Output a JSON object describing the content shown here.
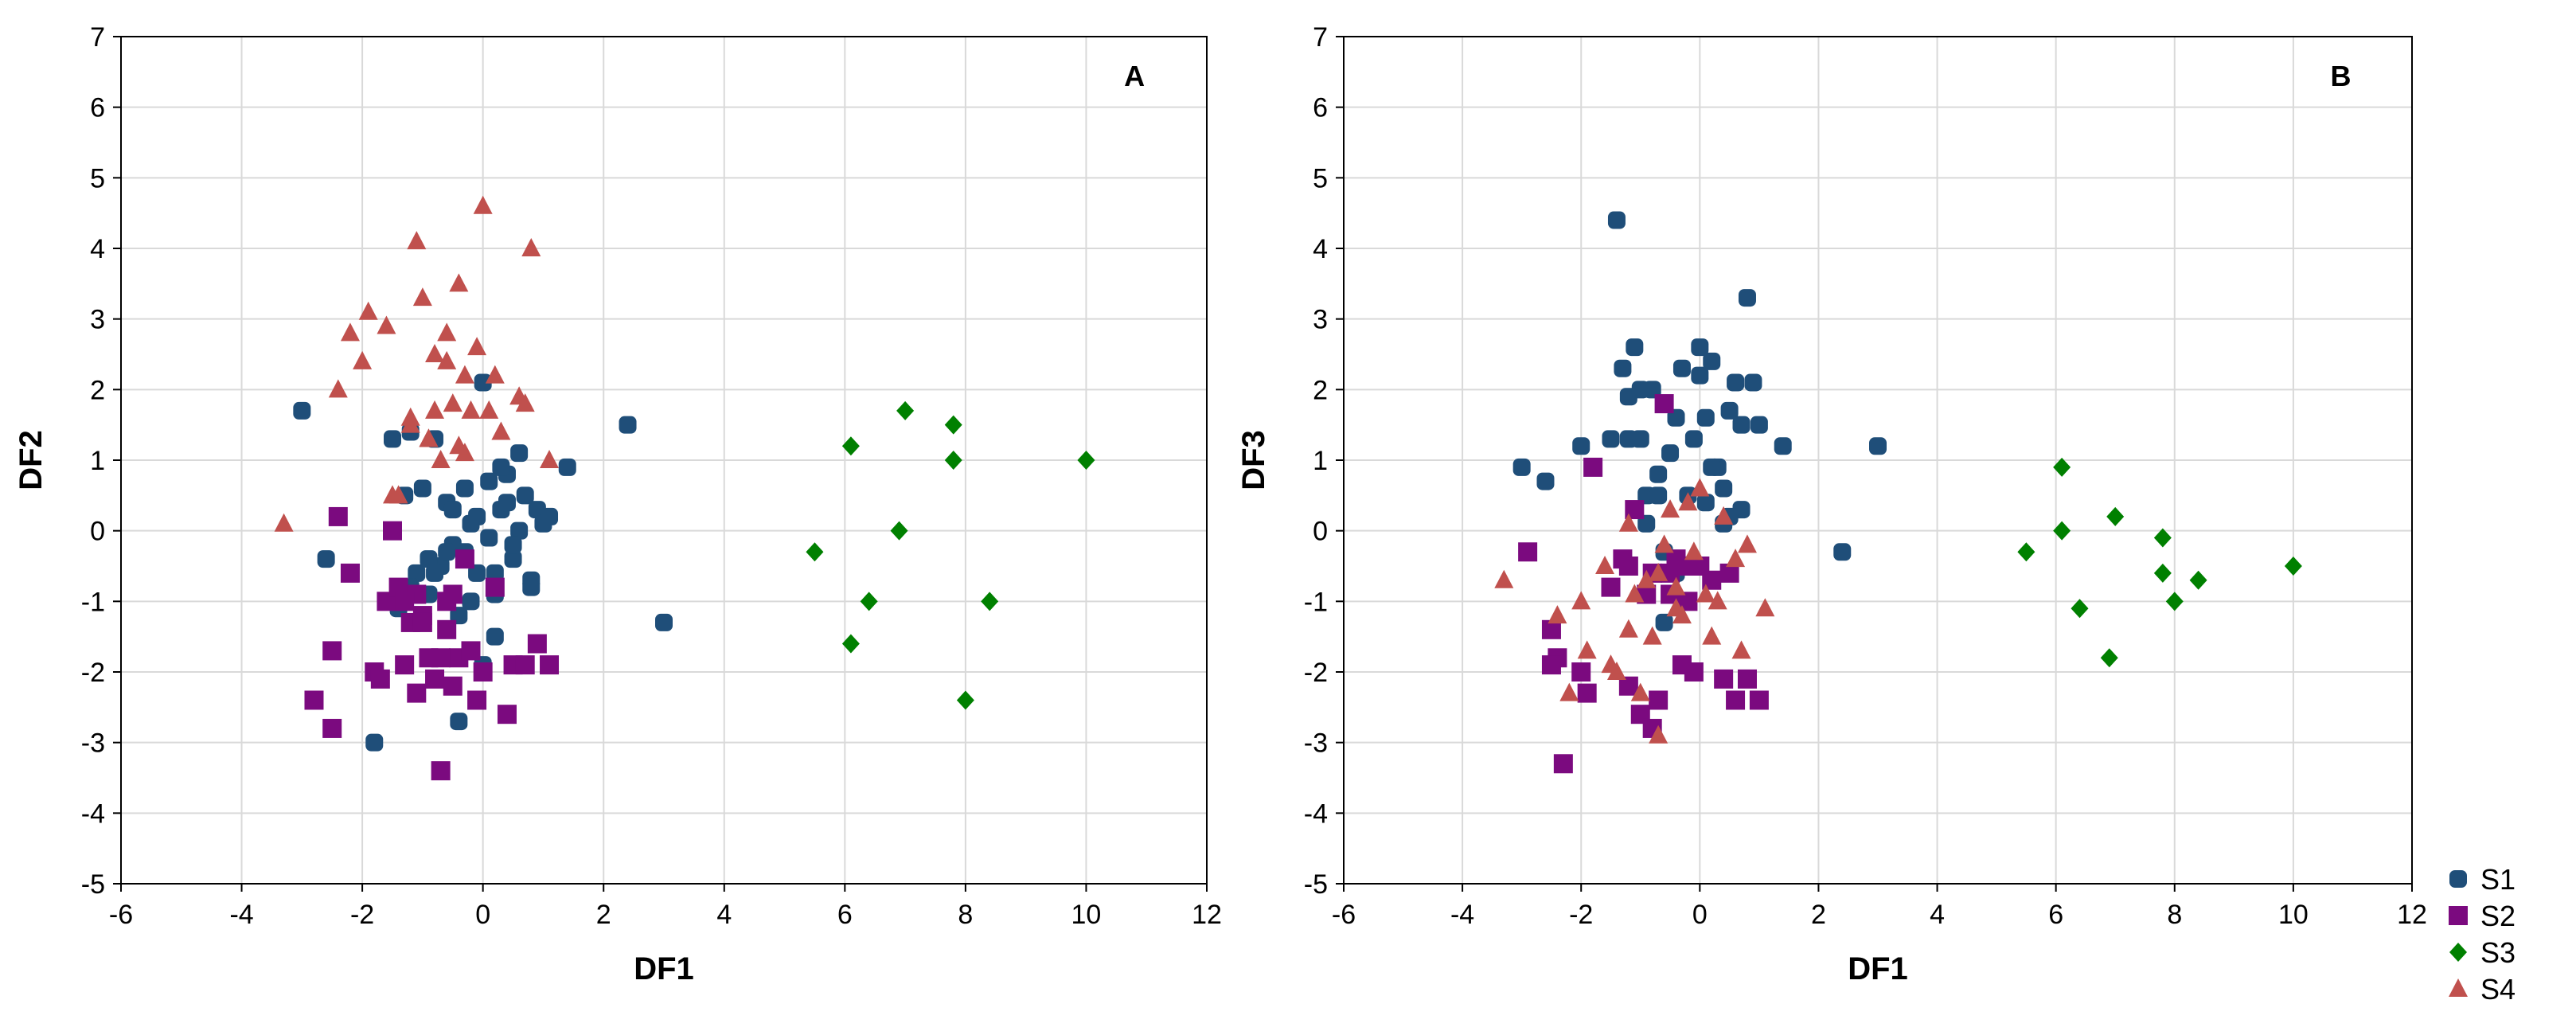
{
  "chart_data": [
    {
      "type": "scatter",
      "panel_label": "A",
      "xlabel": "DF1",
      "ylabel": "DF2",
      "xlim": [
        -6,
        12
      ],
      "ylim": [
        -5,
        7
      ],
      "xticks": [
        -6,
        -4,
        -2,
        0,
        2,
        4,
        6,
        8,
        10,
        12
      ],
      "yticks": [
        -5,
        -4,
        -3,
        -2,
        -1,
        0,
        1,
        2,
        3,
        4,
        5,
        6,
        7
      ],
      "grid": true,
      "series": [
        {
          "name": "S1",
          "color": "#1f4e79",
          "marker": "circle",
          "x": [
            -3.0,
            -2.6,
            -1.8,
            -1.5,
            -1.4,
            -1.3,
            -1.2,
            -1.1,
            -1.0,
            -0.9,
            -0.8,
            -0.7,
            -0.6,
            -0.5,
            -0.4,
            -0.3,
            -0.2,
            -0.1,
            0.0,
            0.1,
            0.2,
            0.3,
            0.4,
            0.5,
            0.6,
            0.7,
            0.8,
            0.9,
            1.0,
            1.1,
            1.4,
            2.4,
            3.0,
            -1.2,
            -0.6,
            -0.3,
            0.1,
            0.4,
            0.2,
            -0.2,
            0.6,
            -0.9,
            -0.4,
            0.3,
            0.0,
            -1.4,
            -0.8,
            0.5,
            -0.1,
            0.8,
            -0.5,
            0.2
          ],
          "y": [
            1.7,
            -0.4,
            -3.0,
            1.3,
            -1.1,
            0.5,
            1.4,
            -0.6,
            0.6,
            -0.9,
            1.3,
            -0.5,
            0.4,
            -0.2,
            -2.7,
            -0.3,
            0.1,
            -0.6,
            2.1,
            0.7,
            -1.5,
            0.3,
            0.8,
            -0.4,
            1.1,
            0.5,
            -0.7,
            0.3,
            0.1,
            0.2,
            0.9,
            1.5,
            -1.3,
            -0.8,
            -0.3,
            0.6,
            -0.1,
            0.4,
            -0.6,
            -1.0,
            0.0,
            -0.4,
            -1.2,
            0.9,
            -1.9,
            -1.0,
            -0.6,
            -0.2,
            0.2,
            -0.8,
            0.3,
            -0.9
          ]
        },
        {
          "name": "S2",
          "color": "#7b0a7f",
          "marker": "square",
          "x": [
            -2.8,
            -2.5,
            -2.4,
            -2.2,
            -1.8,
            -1.6,
            -1.5,
            -1.4,
            -1.3,
            -1.2,
            -1.1,
            -1.0,
            -0.9,
            -0.8,
            -0.7,
            -0.6,
            -0.5,
            -0.4,
            -0.3,
            -0.2,
            -0.1,
            0.0,
            0.4,
            0.5,
            0.9,
            1.1,
            -2.5,
            -1.7,
            -1.3,
            -1.0,
            -0.7,
            -0.5,
            0.2,
            0.7,
            -1.1,
            -0.6
          ],
          "y": [
            -2.4,
            -2.8,
            0.2,
            -0.6,
            -2.0,
            -1.0,
            0.0,
            -0.8,
            -1.9,
            -1.3,
            -0.9,
            -1.2,
            -1.8,
            -2.1,
            -3.4,
            -1.0,
            -2.2,
            -1.8,
            -0.4,
            -1.7,
            -2.4,
            -2.0,
            -2.6,
            -1.9,
            -1.6,
            -1.9,
            -1.7,
            -2.1,
            -1.0,
            -1.3,
            -1.8,
            -0.9,
            -0.8,
            -1.9,
            -2.3,
            -1.4
          ]
        },
        {
          "name": "S3",
          "color": "#008000",
          "marker": "diamond",
          "x": [
            5.5,
            6.1,
            6.1,
            6.4,
            6.9,
            7.0,
            7.8,
            7.8,
            8.0,
            8.4,
            10.0
          ],
          "y": [
            -0.3,
            1.2,
            -1.6,
            -1.0,
            0.0,
            1.7,
            1.5,
            1.0,
            -2.4,
            -1.0,
            1.0
          ]
        },
        {
          "name": "S4",
          "color": "#c0504d",
          "marker": "triangle",
          "x": [
            -3.3,
            -2.4,
            -2.2,
            -2.0,
            -1.9,
            -1.6,
            -1.4,
            -1.2,
            -1.1,
            -1.0,
            -0.9,
            -0.8,
            -0.7,
            -0.6,
            -0.5,
            -0.4,
            -0.3,
            -0.2,
            -0.1,
            0.0,
            0.1,
            0.2,
            0.3,
            0.6,
            0.7,
            0.8,
            1.1,
            -1.2,
            -0.6,
            -0.9,
            -0.3,
            -1.5,
            -0.8,
            -0.4
          ],
          "y": [
            0.1,
            2.0,
            2.8,
            2.4,
            3.1,
            2.9,
            0.5,
            1.5,
            4.1,
            3.3,
            1.3,
            2.5,
            1.0,
            2.8,
            1.8,
            3.5,
            2.2,
            1.7,
            2.6,
            4.6,
            1.7,
            2.2,
            1.4,
            1.9,
            1.8,
            4.0,
            1.0,
            1.6,
            2.4,
            1.3,
            1.1,
            0.5,
            1.7,
            1.2
          ]
        }
      ]
    },
    {
      "type": "scatter",
      "panel_label": "B",
      "xlabel": "DF1",
      "ylabel": "DF3",
      "xlim": [
        -6,
        12
      ],
      "ylim": [
        -5,
        7
      ],
      "xticks": [
        -6,
        -4,
        -2,
        0,
        2,
        4,
        6,
        8,
        10,
        12
      ],
      "yticks": [
        -5,
        -4,
        -3,
        -2,
        -1,
        0,
        1,
        2,
        3,
        4,
        5,
        6,
        7
      ],
      "grid": true,
      "series": [
        {
          "name": "S1",
          "color": "#1f4e79",
          "marker": "circle",
          "x": [
            -3.0,
            -2.6,
            -2.0,
            -1.8,
            -1.4,
            -1.3,
            -1.2,
            -1.1,
            -1.0,
            -0.9,
            -0.8,
            -0.7,
            -0.6,
            -0.5,
            -0.4,
            -0.3,
            -0.2,
            -0.1,
            0.0,
            0.1,
            0.2,
            0.3,
            0.4,
            0.5,
            0.6,
            0.7,
            0.8,
            0.9,
            1.0,
            1.4,
            2.4,
            3.0,
            -1.2,
            -0.6,
            0.2,
            -0.4,
            0.5,
            -1.5,
            -0.9,
            0.1,
            0.7,
            -0.2,
            0.4,
            -1.0,
            0.0,
            -0.7
          ],
          "y": [
            0.9,
            0.7,
            1.2,
            0.9,
            4.4,
            2.3,
            1.9,
            2.6,
            1.3,
            0.5,
            2.0,
            0.8,
            -1.3,
            1.1,
            1.6,
            2.3,
            0.5,
            1.3,
            2.6,
            1.6,
            2.4,
            0.9,
            0.6,
            1.7,
            2.1,
            0.3,
            3.3,
            2.1,
            1.5,
            1.2,
            -0.3,
            1.2,
            1.3,
            -0.3,
            0.9,
            -0.6,
            0.2,
            1.3,
            0.1,
            0.4,
            1.5,
            -0.5,
            0.1,
            2.0,
            2.2,
            0.5
          ]
        },
        {
          "name": "S2",
          "color": "#7b0a7f",
          "marker": "square",
          "x": [
            -2.9,
            -2.5,
            -2.4,
            -2.3,
            -2.0,
            -1.8,
            -1.5,
            -1.3,
            -1.2,
            -1.1,
            -1.0,
            -0.9,
            -0.8,
            -0.7,
            -0.6,
            -0.5,
            -0.4,
            -0.3,
            -0.2,
            -0.1,
            0.0,
            0.4,
            0.6,
            0.8,
            1.0,
            -2.5,
            -1.9,
            -1.2,
            -0.5,
            0.2,
            -0.8,
            -0.3,
            0.5
          ],
          "y": [
            -0.3,
            -1.4,
            -1.8,
            -3.3,
            -2.0,
            0.9,
            -0.8,
            -0.4,
            -2.2,
            0.3,
            -2.6,
            -0.9,
            -2.8,
            -2.4,
            1.8,
            -0.6,
            -0.4,
            -1.9,
            -1.0,
            -2.0,
            -0.5,
            -2.1,
            -2.4,
            -2.1,
            -2.4,
            -1.9,
            -2.3,
            -0.5,
            -0.9,
            -0.7,
            -0.6,
            -0.5,
            -0.6
          ]
        },
        {
          "name": "S3",
          "color": "#008000",
          "marker": "diamond",
          "x": [
            5.5,
            6.1,
            6.1,
            6.4,
            6.9,
            7.0,
            7.8,
            7.8,
            8.0,
            8.4,
            10.0
          ],
          "y": [
            -0.3,
            0.9,
            0.0,
            -1.1,
            -1.8,
            0.2,
            -0.1,
            -0.6,
            -1.0,
            -0.7,
            -0.5
          ]
        },
        {
          "name": "S4",
          "color": "#c0504d",
          "marker": "triangle",
          "x": [
            -3.3,
            -2.4,
            -2.2,
            -2.0,
            -1.9,
            -1.6,
            -1.4,
            -1.2,
            -1.1,
            -1.0,
            -0.9,
            -0.8,
            -0.7,
            -0.6,
            -0.5,
            -0.4,
            -0.3,
            -0.2,
            -0.1,
            0.0,
            0.1,
            0.2,
            0.3,
            0.6,
            0.7,
            0.8,
            1.1,
            -1.2,
            -0.7,
            -0.4,
            -1.5,
            0.4
          ],
          "y": [
            -0.7,
            -1.2,
            -2.3,
            -1.0,
            -1.7,
            -0.5,
            -2.0,
            -1.4,
            -0.9,
            -2.3,
            -0.7,
            -1.5,
            -2.9,
            -0.2,
            0.3,
            -0.8,
            -1.2,
            0.4,
            -0.3,
            0.6,
            -0.9,
            -1.5,
            -1.0,
            -0.4,
            -1.7,
            -0.2,
            -1.1,
            0.1,
            -0.6,
            -1.1,
            -1.9,
            0.2
          ]
        }
      ]
    }
  ],
  "legend": {
    "placement": "bottom-right",
    "items": [
      {
        "label": "S1",
        "color": "#1f4e79",
        "marker": "circle"
      },
      {
        "label": "S2",
        "color": "#7b0a7f",
        "marker": "square"
      },
      {
        "label": "S3",
        "color": "#008000",
        "marker": "diamond"
      },
      {
        "label": "S4",
        "color": "#c0504d",
        "marker": "triangle"
      }
    ]
  }
}
